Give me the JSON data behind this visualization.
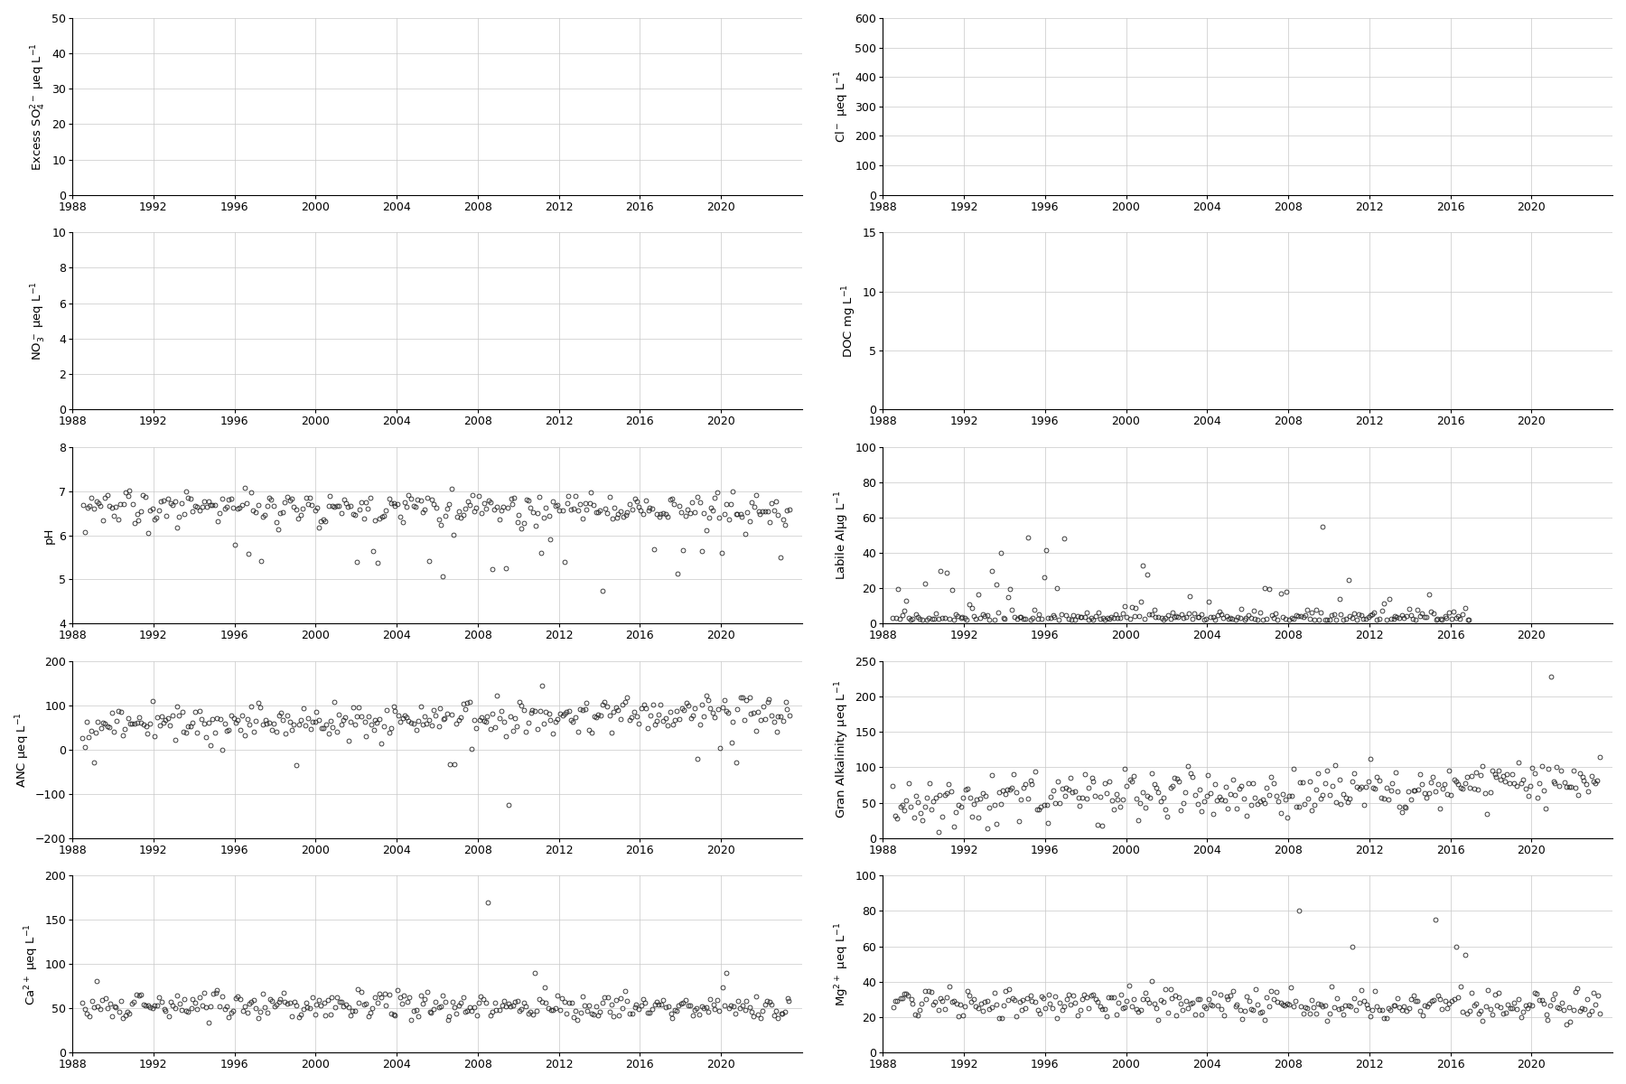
{
  "panels": [
    {
      "row": 0,
      "col": 0,
      "ylabel": "Excess SO$_4^{2-}$ μeq L$^{-1}$",
      "ylim": [
        0,
        50
      ],
      "yticks": [
        0,
        10,
        20,
        30,
        40,
        50
      ],
      "has_data": false
    },
    {
      "row": 0,
      "col": 1,
      "ylabel": "Cl$^-$ μeq L$^{-1}$",
      "ylim": [
        0,
        600
      ],
      "yticks": [
        0,
        100,
        200,
        300,
        400,
        500,
        600
      ],
      "has_data": false
    },
    {
      "row": 1,
      "col": 0,
      "ylabel": "NO$_3^-$ μeq L$^{-1}$",
      "ylim": [
        0,
        10
      ],
      "yticks": [
        0,
        2,
        4,
        6,
        8,
        10
      ],
      "has_data": false
    },
    {
      "row": 1,
      "col": 1,
      "ylabel": "DOC mg L$^{-1}$",
      "ylim": [
        0,
        15
      ],
      "yticks": [
        0,
        5,
        10,
        15
      ],
      "has_data": false
    },
    {
      "row": 2,
      "col": 0,
      "ylabel": "pH",
      "ylim": [
        4,
        8
      ],
      "yticks": [
        4,
        5,
        6,
        7,
        8
      ],
      "has_data": true,
      "data_key": "pH"
    },
    {
      "row": 2,
      "col": 1,
      "ylabel": "Labile Alμg L$^{-1}$",
      "ylim": [
        0,
        100
      ],
      "yticks": [
        0,
        20,
        40,
        60,
        80,
        100
      ],
      "has_data": true,
      "data_key": "labile_al"
    },
    {
      "row": 3,
      "col": 0,
      "ylabel": "ANC μeq L$^{-1}$",
      "ylim": [
        -200,
        200
      ],
      "yticks": [
        -200,
        -100,
        0,
        100,
        200
      ],
      "has_data": true,
      "data_key": "anc"
    },
    {
      "row": 3,
      "col": 1,
      "ylabel": "Gran Alkalinity μeq L$^{-1}$",
      "ylim": [
        0,
        250
      ],
      "yticks": [
        0,
        50,
        100,
        150,
        200,
        250
      ],
      "has_data": true,
      "data_key": "gran_alk"
    },
    {
      "row": 4,
      "col": 0,
      "ylabel": "Ca$^{2+}$ μeq L$^{-1}$",
      "ylim": [
        0,
        200
      ],
      "yticks": [
        0,
        50,
        100,
        150,
        200
      ],
      "has_data": true,
      "data_key": "ca"
    },
    {
      "row": 4,
      "col": 1,
      "ylabel": "Mg$^{2+}$ μeq L$^{-1}$",
      "ylim": [
        0,
        100
      ],
      "yticks": [
        0,
        20,
        40,
        60,
        80,
        100
      ],
      "has_data": true,
      "data_key": "mg"
    }
  ],
  "xlim": [
    1988,
    2024
  ],
  "xticks": [
    1988,
    1992,
    1996,
    2000,
    2004,
    2008,
    2012,
    2016,
    2020
  ],
  "marker": "o",
  "marker_size": 3.5,
  "marker_facecolor": "none",
  "marker_edgecolor": "#222222",
  "marker_linewidth": 0.6,
  "grid_color": "#c8c8c8",
  "grid_linewidth": 0.5,
  "background_color": "#ffffff",
  "figure_facecolor": "#ffffff",
  "ylabel_fontsize": 9.5,
  "tick_fontsize": 9
}
